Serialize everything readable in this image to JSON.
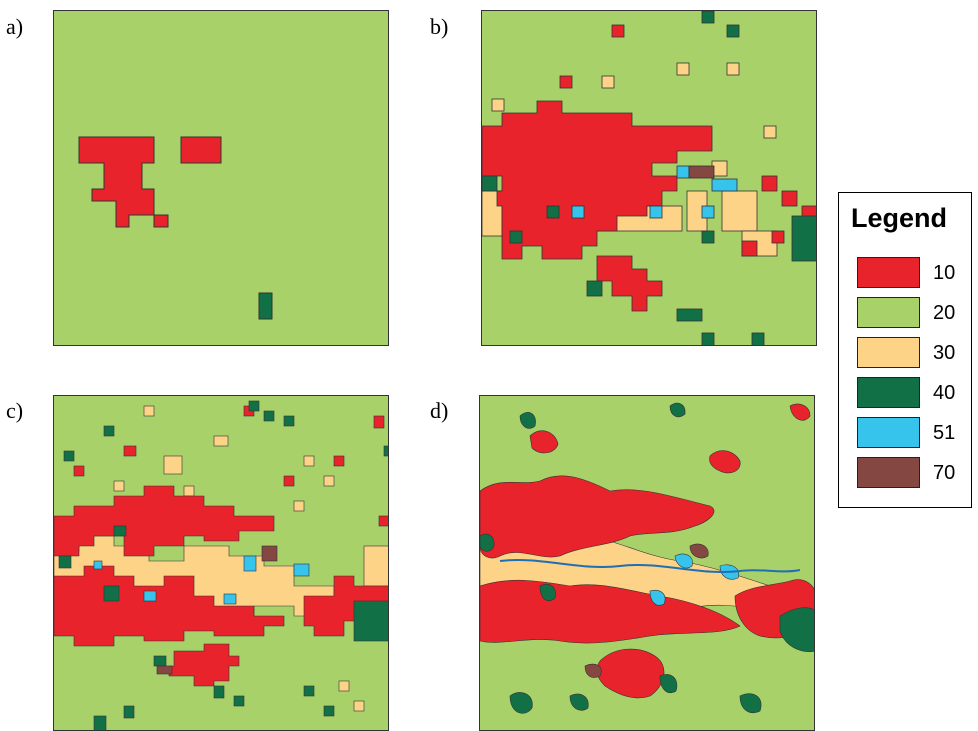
{
  "panel_labels": [
    "a)",
    "b)",
    "c)",
    "d)"
  ],
  "legend": {
    "title": "Legend",
    "items": [
      {
        "label": "10",
        "color": "#e8232b"
      },
      {
        "label": "20",
        "color": "#a8d16a"
      },
      {
        "label": "30",
        "color": "#fcd387"
      },
      {
        "label": "40",
        "color": "#127046"
      },
      {
        "label": "51",
        "color": "#36c3ec"
      },
      {
        "label": "70",
        "color": "#854742"
      }
    ]
  }
}
